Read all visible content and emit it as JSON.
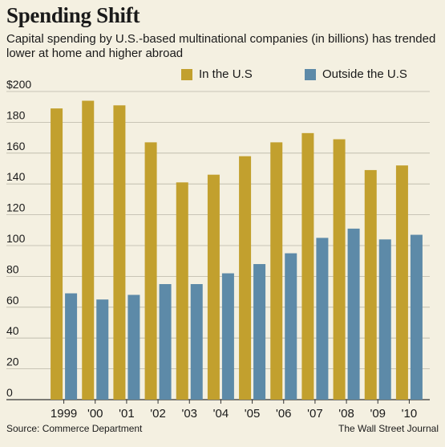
{
  "header": {
    "title": "Spending Shift",
    "subtitle": "Capital spending by U.S.-based multinational companies (in billions) has trended lower at home and higher abroad"
  },
  "legend": {
    "items": [
      {
        "label": "In the U.S",
        "color": "#c2a02e"
      },
      {
        "label": "Outside the U.S",
        "color": "#5d8aa8"
      }
    ]
  },
  "footer": {
    "source": "Source: Commerce Department",
    "credit": "The Wall Street Journal"
  },
  "chart_data": {
    "type": "bar",
    "categories": [
      "1999",
      "'00",
      "'01",
      "'02",
      "'03",
      "'04",
      "'05",
      "'06",
      "'07",
      "'08",
      "'09",
      "'10"
    ],
    "series": [
      {
        "name": "In the U.S",
        "color": "#c2a02e",
        "values": [
          189,
          194,
          191,
          167,
          141,
          146,
          158,
          167,
          173,
          169,
          149,
          152
        ]
      },
      {
        "name": "Outside the U.S",
        "color": "#5d8aa8",
        "values": [
          69,
          65,
          68,
          75,
          75,
          82,
          88,
          95,
          105,
          111,
          104,
          107
        ]
      }
    ],
    "yticks": [
      "$200",
      "180",
      "160",
      "140",
      "120",
      "100",
      "80",
      "60",
      "40",
      "20",
      "0"
    ],
    "ylim": [
      0,
      200
    ],
    "grid": true
  }
}
